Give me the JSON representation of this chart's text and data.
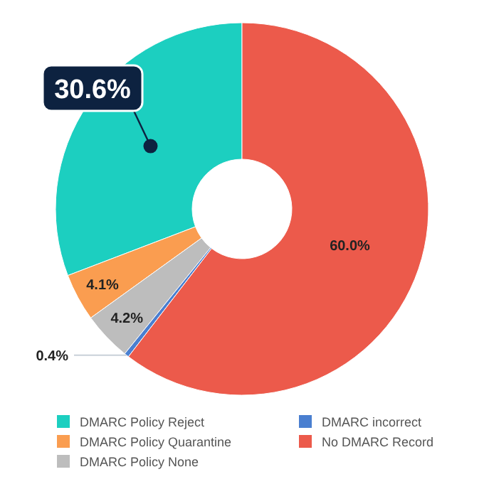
{
  "chart_data": {
    "type": "donut",
    "categories": [
      "DMARC Policy Reject",
      "DMARC Policy Quarantine",
      "DMARC Policy None",
      "DMARC incorrect",
      "No DMARC Record"
    ],
    "values": [
      30.6,
      4.1,
      4.2,
      0.4,
      60.0
    ],
    "colors": [
      "#1ccfc0",
      "#fa9d50",
      "#bdbdbd",
      "#4a7fd0",
      "#ec5a4b"
    ],
    "value_labels": [
      "30.6%",
      "4.1%",
      "4.2%",
      "0.4%",
      "60.0%"
    ],
    "legend": "bottom"
  }
}
